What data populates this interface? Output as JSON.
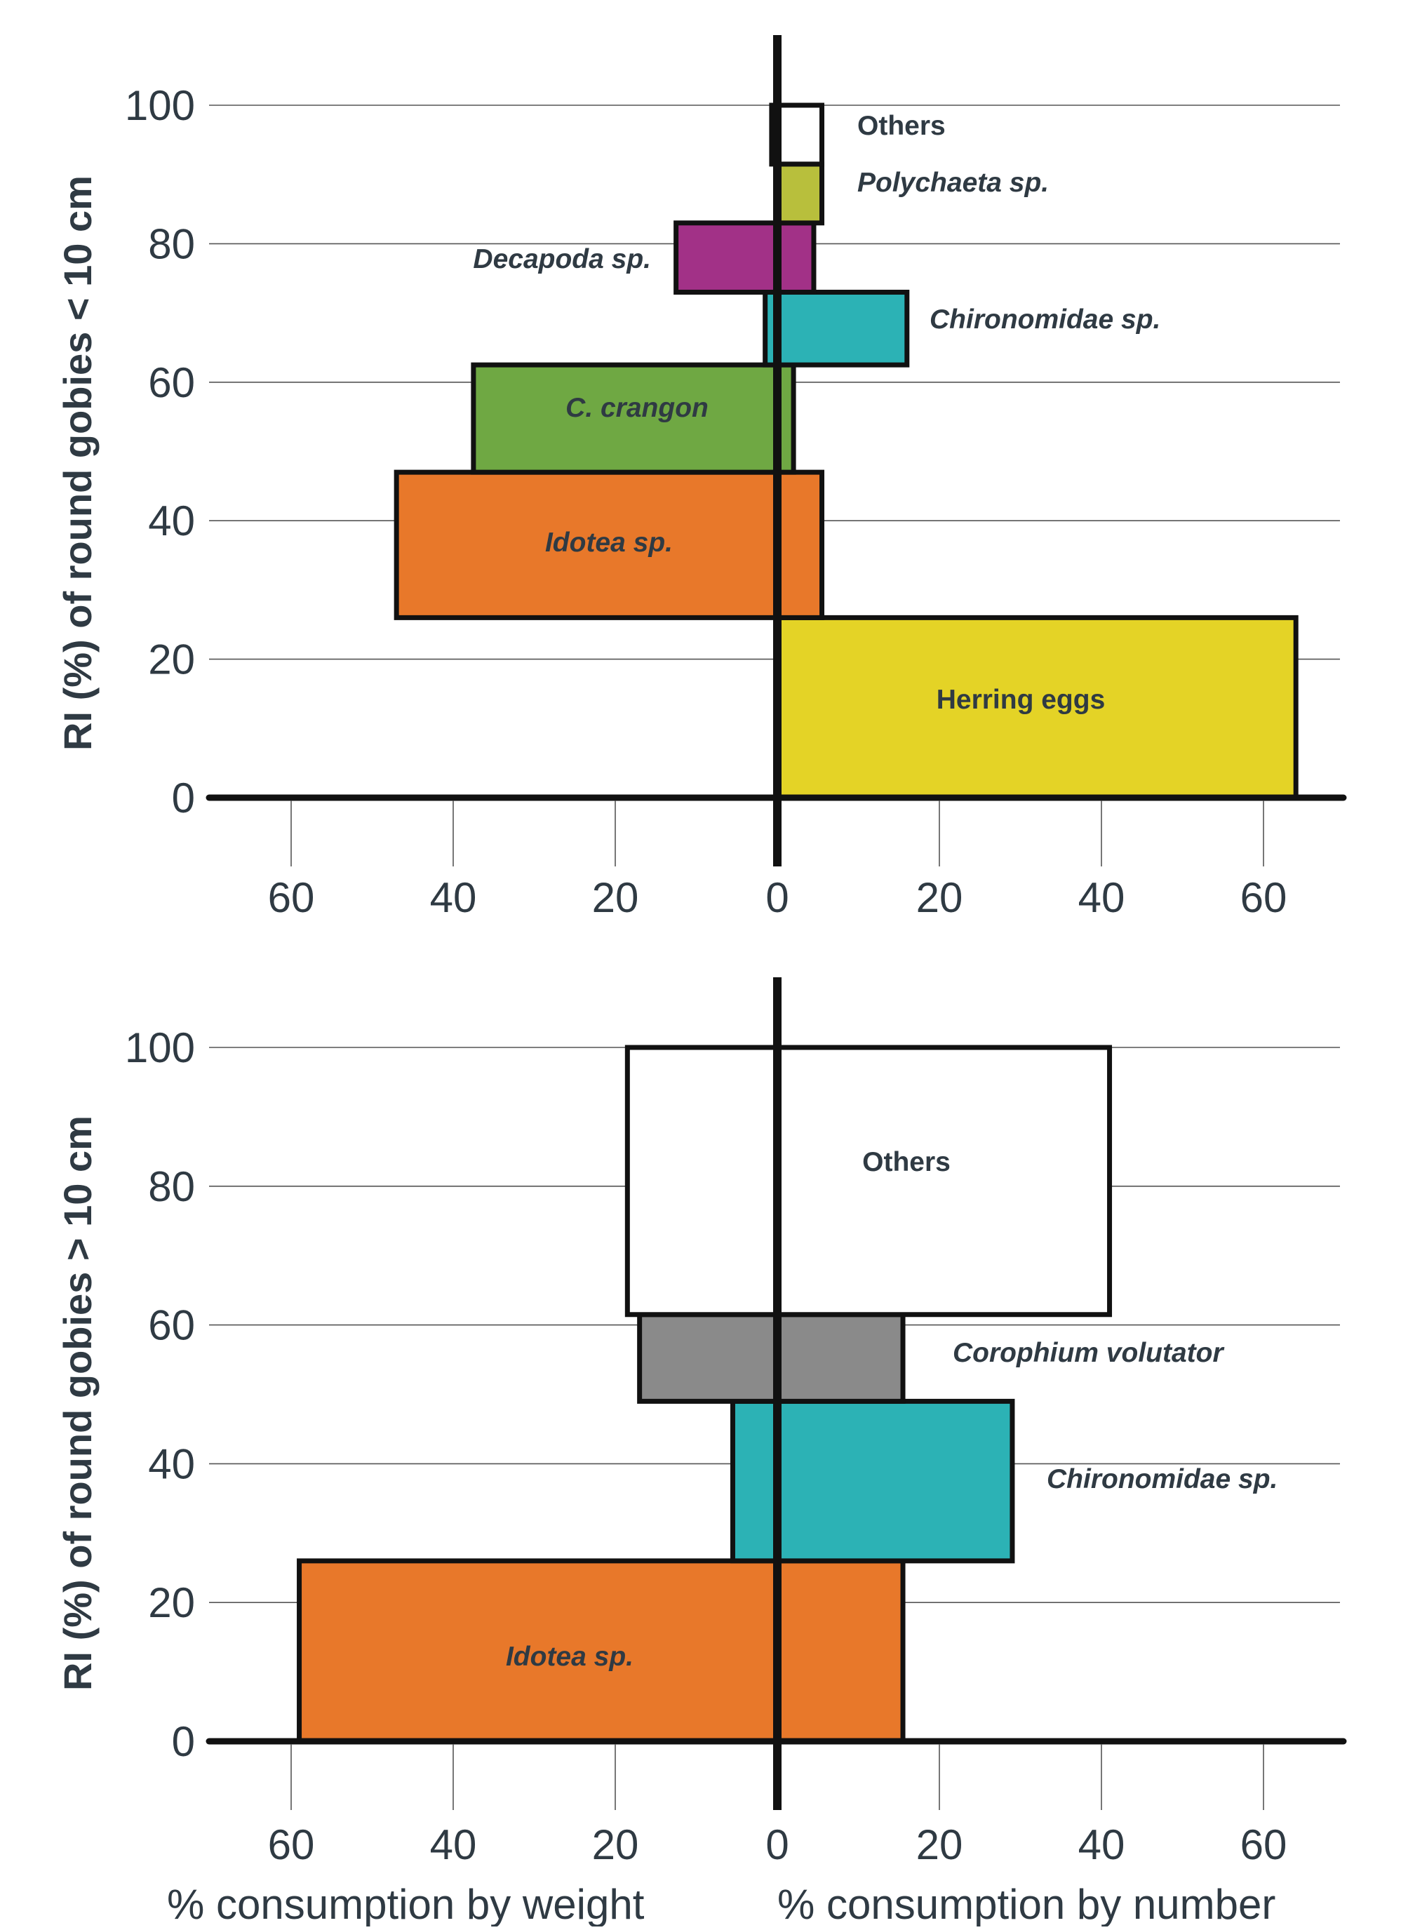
{
  "chart_data": [
    {
      "type": "bar",
      "orientation": "horizontal-stacked-bidirectional",
      "ylabel": "RI (%) of  round gobies < 10 cm",
      "ylim": [
        0,
        100
      ],
      "yticks": [
        0,
        20,
        40,
        60,
        80,
        100
      ],
      "xticks_left": [
        60,
        40,
        20,
        0
      ],
      "xticks_right": [
        20,
        40,
        60
      ],
      "xlim": [
        -70,
        70
      ],
      "grid": "horizontal",
      "bars": [
        {
          "label": "Herring eggs",
          "ri_from": 0,
          "ri_to": 26,
          "weight_pct": 0,
          "number_pct": 64,
          "color": "#e4d326",
          "italic": false,
          "label_side": "center"
        },
        {
          "label": "Idotea sp.",
          "ri_from": 26,
          "ri_to": 47,
          "weight_pct": 47,
          "number_pct": 5.5,
          "color": "#e8782a",
          "italic": true,
          "label_side": "center"
        },
        {
          "label": "C. crangon",
          "ri_from": 47,
          "ri_to": 62.5,
          "weight_pct": 37.5,
          "number_pct": 2,
          "color": "#6fa843",
          "italic": true,
          "label_side": "center"
        },
        {
          "label": "Chironomidae  sp.",
          "ri_from": 62.5,
          "ri_to": 73,
          "weight_pct": 1.5,
          "number_pct": 16,
          "color": "#2cb2b5",
          "italic": true,
          "label_side": "right"
        },
        {
          "label": "Decapoda sp.",
          "ri_from": 73,
          "ri_to": 83,
          "weight_pct": 12.5,
          "number_pct": 4.5,
          "color": "#a23187",
          "italic": true,
          "label_side": "left"
        },
        {
          "label": "Polychaeta sp.",
          "ri_from": 83,
          "ri_to": 91.5,
          "weight_pct": 0,
          "number_pct": 5.5,
          "color": "#b8bf3c",
          "italic": true,
          "label_side": "right"
        },
        {
          "label": "Others",
          "ri_from": 91.5,
          "ri_to": 100,
          "weight_pct": 0.7,
          "number_pct": 5.5,
          "color": "#ffffff",
          "italic": false,
          "label_side": "right"
        }
      ]
    },
    {
      "type": "bar",
      "orientation": "horizontal-stacked-bidirectional",
      "ylabel": "RI (%) of  round gobies > 10 cm",
      "ylim": [
        0,
        100
      ],
      "yticks": [
        0,
        20,
        40,
        60,
        80,
        100
      ],
      "xticks_left": [
        60,
        40,
        20,
        0
      ],
      "xticks_right": [
        20,
        40,
        60
      ],
      "xlim": [
        -70,
        70
      ],
      "xlabel_left": "% consumption by weight",
      "xlabel_right": "% consumption by number",
      "grid": "horizontal",
      "bars": [
        {
          "label": "Idotea sp.",
          "ri_from": 0,
          "ri_to": 26,
          "weight_pct": 59,
          "number_pct": 15.5,
          "color": "#e8782a",
          "italic": true,
          "label_side": "center"
        },
        {
          "label": "Chironomidae  sp.",
          "ri_from": 26,
          "ri_to": 49,
          "weight_pct": 5.5,
          "number_pct": 29,
          "color": "#2cb2b5",
          "italic": true,
          "label_side": "right"
        },
        {
          "label": "Corophium  volutator",
          "ri_from": 49,
          "ri_to": 61.5,
          "weight_pct": 17,
          "number_pct": 15.5,
          "color": "#8a8a8a",
          "italic": true,
          "label_side": "right"
        },
        {
          "label": "Others",
          "ri_from": 61.5,
          "ri_to": 100,
          "weight_pct": 18.5,
          "number_pct": 41,
          "color": "#ffffff",
          "italic": false,
          "label_side": "center"
        }
      ]
    }
  ]
}
